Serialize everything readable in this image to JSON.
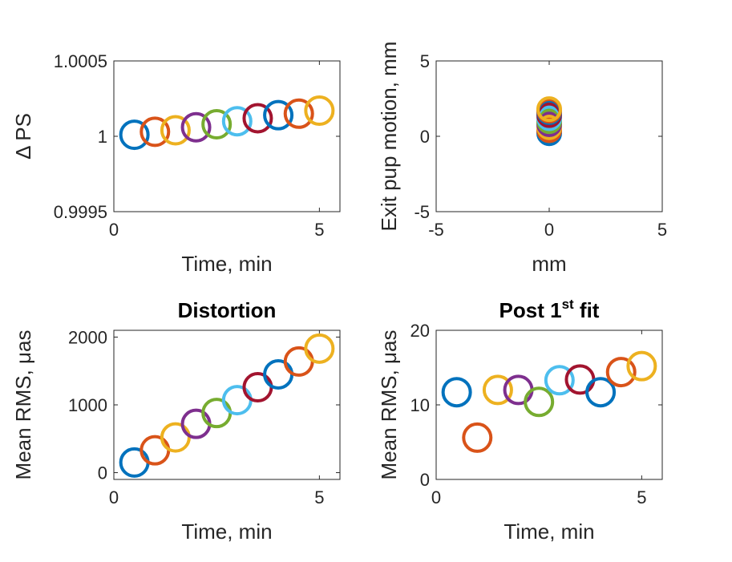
{
  "palette": [
    "#0072BD",
    "#D95319",
    "#EDB120",
    "#7E2F8E",
    "#77AC30",
    "#4DBEEE",
    "#A2142F"
  ],
  "chart_data": [
    {
      "type": "scatter",
      "title": "",
      "xlabel": "Time, min",
      "ylabel": "Δ PS",
      "xlim": [
        0,
        5.5
      ],
      "ylim": [
        0.9995,
        1.0005
      ],
      "xticks": [
        {
          "v": 0,
          "t": "0"
        },
        {
          "v": 5,
          "t": "5"
        }
      ],
      "yticks": [
        {
          "v": 0.9995,
          "t": "0.9995"
        },
        {
          "v": 1.0,
          "t": "1"
        },
        {
          "v": 1.0005,
          "t": "1.0005"
        }
      ],
      "x": [
        0.5,
        1.0,
        1.5,
        2.0,
        2.5,
        3.0,
        3.5,
        4.0,
        4.5,
        5.0
      ],
      "y": [
        1.00001,
        1.00003,
        1.00004,
        1.00006,
        1.00008,
        1.0001,
        1.00012,
        1.00014,
        1.00015,
        1.00017
      ]
    },
    {
      "type": "scatter",
      "title": "",
      "xlabel": "mm",
      "ylabel": "Exit pup motion, mm",
      "xlim": [
        -5,
        5
      ],
      "ylim": [
        -5,
        5
      ],
      "xticks": [
        {
          "v": -5,
          "t": "-5"
        },
        {
          "v": 0,
          "t": "0"
        },
        {
          "v": 5,
          "t": "5"
        }
      ],
      "yticks": [
        {
          "v": -5,
          "t": "-5"
        },
        {
          "v": 0,
          "t": "0"
        },
        {
          "v": 5,
          "t": "5"
        }
      ],
      "x": [
        0,
        0,
        0,
        0,
        0,
        0,
        0,
        0,
        0,
        0
      ],
      "y": [
        0.2,
        0.4,
        0.6,
        0.8,
        1.0,
        1.2,
        1.4,
        1.6,
        1.7,
        1.8
      ]
    },
    {
      "type": "scatter",
      "title": "Distortion",
      "xlabel": "Time, min",
      "ylabel": "Mean RMS, μas",
      "xlim": [
        0,
        5.5
      ],
      "ylim": [
        -100,
        2100
      ],
      "xticks": [
        {
          "v": 0,
          "t": "0"
        },
        {
          "v": 5,
          "t": "5"
        }
      ],
      "yticks": [
        {
          "v": 0,
          "t": "0"
        },
        {
          "v": 1000,
          "t": "1000"
        },
        {
          "v": 2000,
          "t": "2000"
        }
      ],
      "x": [
        0.5,
        1.0,
        1.5,
        2.0,
        2.5,
        3.0,
        3.5,
        4.0,
        4.5,
        5.0
      ],
      "y": [
        150,
        330,
        520,
        720,
        880,
        1070,
        1260,
        1450,
        1640,
        1830
      ]
    },
    {
      "type": "scatter",
      "title": "Post 1st fit",
      "title_main": "Post 1",
      "title_sup": "st",
      "title_rest": " fit",
      "xlabel": "Time, min",
      "ylabel": "Mean RMS, μas",
      "xlim": [
        0,
        5.5
      ],
      "ylim": [
        0,
        20
      ],
      "xticks": [
        {
          "v": 0,
          "t": "0"
        },
        {
          "v": 5,
          "t": "5"
        }
      ],
      "yticks": [
        {
          "v": 0,
          "t": "0"
        },
        {
          "v": 10,
          "t": "10"
        },
        {
          "v": 20,
          "t": "20"
        }
      ],
      "x": [
        0.5,
        1.0,
        1.5,
        2.0,
        2.5,
        3.0,
        3.5,
        4.0,
        4.5,
        5.0
      ],
      "y": [
        11.7,
        5.6,
        12.0,
        12.0,
        10.4,
        13.3,
        13.4,
        11.7,
        14.4,
        15.2
      ]
    }
  ]
}
